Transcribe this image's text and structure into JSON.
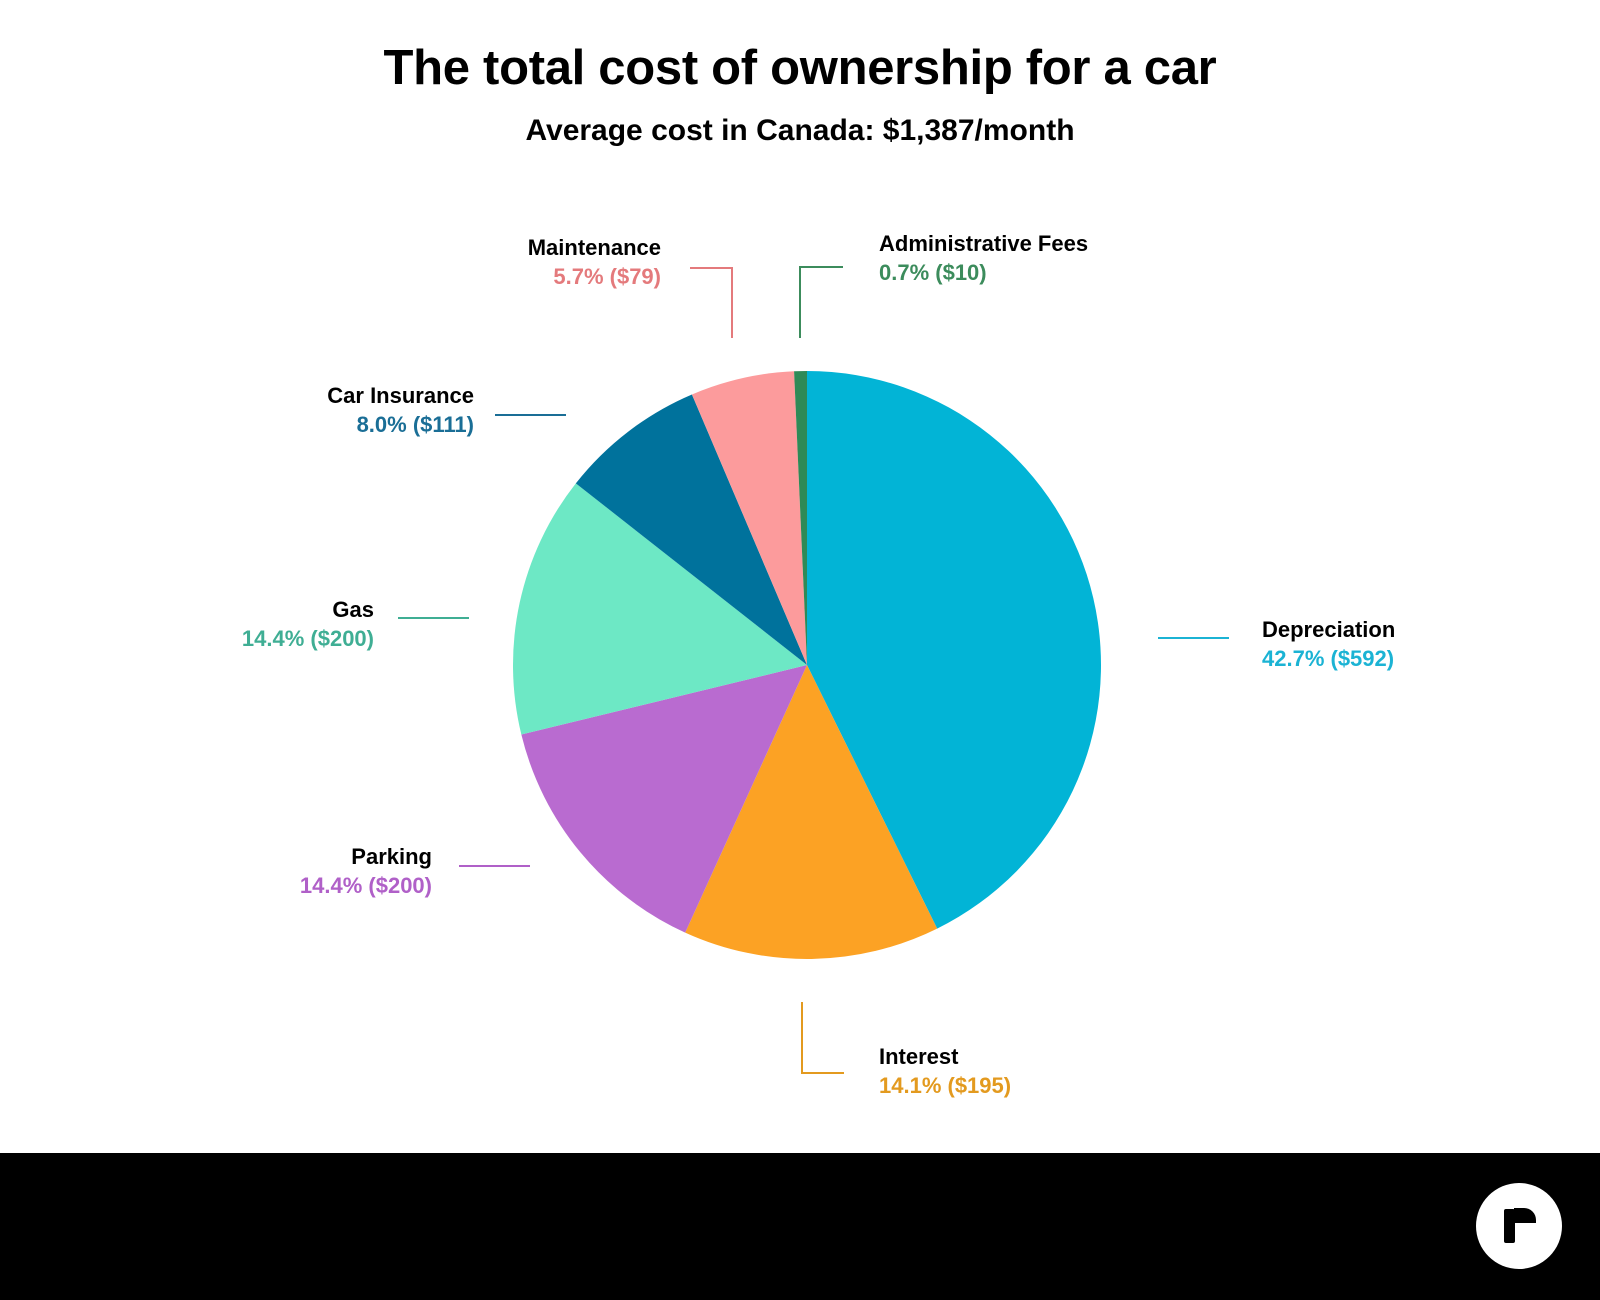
{
  "chart_data": {
    "type": "pie",
    "title": "The total cost of ownership for a car",
    "subtitle": "Average cost in Canada: $1,387/month",
    "slices": [
      {
        "name": "Depreciation",
        "percent": 42.7,
        "value": 592,
        "label": "42.7% ($592)",
        "color": "#02B4D6",
        "text_color": "#1BB3D4"
      },
      {
        "name": "Interest",
        "percent": 14.1,
        "value": 195,
        "label": "14.1% ($195)",
        "color": "#FCA224",
        "text_color": "#E39A1F"
      },
      {
        "name": "Parking",
        "percent": 14.4,
        "value": 200,
        "label": "14.4% ($200)",
        "color": "#B96BD0",
        "text_color": "#B060C8"
      },
      {
        "name": "Gas",
        "percent": 14.4,
        "value": 200,
        "label": "14.4% ($200)",
        "color": "#6DE8C5",
        "text_color": "#3FAE94"
      },
      {
        "name": "Car Insurance",
        "percent": 8.0,
        "value": 111,
        "label": "8.0% ($111)",
        "color": "#00729C",
        "text_color": "#1A6E96"
      },
      {
        "name": "Maintenance",
        "percent": 5.7,
        "value": 79,
        "label": "5.7% ($79)",
        "color": "#FC9B9C",
        "text_color": "#E47A7C"
      },
      {
        "name": "Administrative Fees",
        "percent": 0.7,
        "value": 10,
        "label": "0.7% ($10)",
        "color": "#2E8A57",
        "text_color": "#3C8C5C"
      }
    ]
  },
  "logo": {
    "name": "r-logo-icon"
  }
}
